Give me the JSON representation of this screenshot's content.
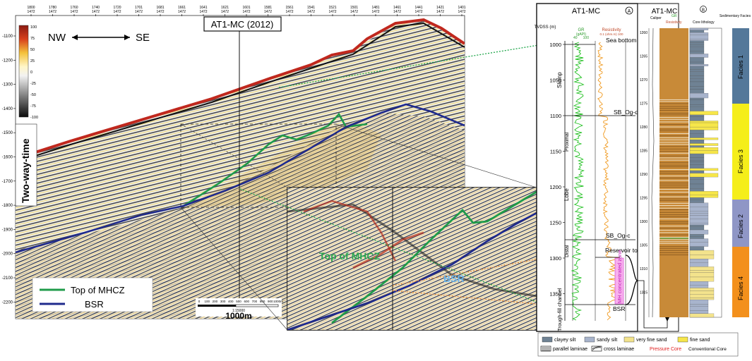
{
  "seismic": {
    "title": "AT1-MC (2012)",
    "orientation_left": "NW",
    "orientation_right": "SE",
    "axis_label": "Two-way-time",
    "y_ticks": [
      "-1100",
      "-1200",
      "-1300",
      "-1400",
      "-1500",
      "-1600",
      "-1700",
      "-1800",
      "-1900",
      "-2000",
      "-2100",
      "-2200"
    ],
    "top_ticks": [
      "1800",
      "1780",
      "1760",
      "1740",
      "1720",
      "1701",
      "1681",
      "1661",
      "1641",
      "1621",
      "1601",
      "1581",
      "1561",
      "1541",
      "1521",
      "1501",
      "1481",
      "1461",
      "1441",
      "1421",
      "1401"
    ],
    "top_sub": "1472",
    "colorbar_ticks": [
      "100",
      "75",
      "50",
      "25",
      "0",
      "-25",
      "-50",
      "-75",
      "-100"
    ],
    "scale_ticks": [
      "0",
      "100",
      "200",
      "300",
      "400",
      "500",
      "600",
      "700",
      "800",
      "900",
      "1000m"
    ],
    "scale_ratio": "1:15000",
    "scale_label": "1000m",
    "legend": [
      {
        "label": "Top of MHCZ",
        "color": "#1f9b4a"
      },
      {
        "label": "BSR",
        "color": "#1f2a8c"
      }
    ],
    "inset_top_label": "Top of MHCZ",
    "inset_bsr_label": "BSR",
    "colors": {
      "top": "#1f9b4a",
      "bsr": "#1f2a8c",
      "seafloor": "#c0281e",
      "guide": "#1fa64a"
    }
  },
  "log_a": {
    "badge": "A",
    "title": "AT1-MC",
    "depth_axis": "TVDSS (m)",
    "depth_ticks": [
      "1000",
      "1050",
      "1100",
      "1150",
      "1200",
      "1250",
      "1300",
      "1350"
    ],
    "gr_label": "GR",
    "gr_unit": "(gAPI)",
    "gr_min": "40",
    "gr_max": "100",
    "res_label": "Resistivity",
    "res_unit": "0.1 (ohm.m) 100",
    "markers": [
      "Sea bottom",
      "SB_Og-d",
      "SB_Og-c",
      "Reservoir top",
      "BSR"
    ],
    "units": [
      "Slump",
      "Proximal",
      "Lobe",
      "Distal",
      "Trough-fill channel"
    ],
    "mh_zone": "MH concentrated zone"
  },
  "log_b": {
    "badge": "B",
    "title": "AT1-MC",
    "depth_ticks": [
      "1260",
      "1265",
      "1270",
      "1275",
      "1280",
      "1285",
      "1290",
      "1295",
      "1300",
      "1305",
      "1310",
      "1315"
    ],
    "caliper": "Caliper",
    "gr": "GR",
    "res": "Resistivity",
    "core_header": "Core lithology",
    "facies_header": "Sedimentary Facies",
    "facies": [
      {
        "label": "Facies 1",
        "color": "#54789a"
      },
      {
        "label": "Facies 3",
        "color": "#f5ee1a"
      },
      {
        "label": "Facies 2",
        "color": "#8f96c6"
      },
      {
        "label": "Facies 4",
        "color": "#f3901c"
      }
    ]
  },
  "lith_legend": {
    "items": [
      {
        "label": "clayey silt",
        "color": "#6f8294"
      },
      {
        "label": "sandy silt",
        "color": "#a8b4cc"
      },
      {
        "label": "very fine sand",
        "color": "#f3e38c"
      },
      {
        "label": "fine sand",
        "color": "#f6e64a"
      }
    ],
    "parallel": "parallel laminae",
    "cross": "cross laminae",
    "pressure": "Pressure Core",
    "conventional": "Conventional Core"
  }
}
